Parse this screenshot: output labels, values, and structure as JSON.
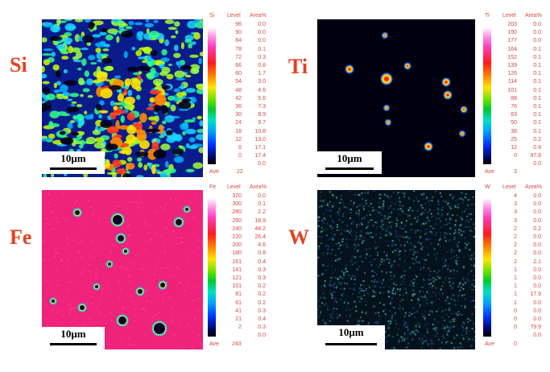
{
  "panels": [
    {
      "element": "Si",
      "scalebar": "10μm",
      "colorbar_tag": "Si",
      "headers": {
        "level": "Level",
        "area": "Area%"
      },
      "levels": [
        "96",
        "90",
        "84",
        "78",
        "72",
        "66",
        "60",
        "54",
        "48",
        "42",
        "36",
        "30",
        "24",
        "18",
        "12",
        "6",
        "0"
      ],
      "areas": [
        "0.0",
        "0.0",
        "0.0",
        "0.1",
        "0.3",
        "0.8",
        "1.7",
        "3.0",
        "4.6",
        "5.6",
        "7.3",
        "8.9",
        "9.7",
        "10.8",
        "13.0",
        "17.1",
        "17.4",
        "0.0"
      ],
      "ave_label": "Ave",
      "ave_value": "22"
    },
    {
      "element": "Ti",
      "scalebar": "10μm",
      "colorbar_tag": "Ti",
      "headers": {
        "level": "Level",
        "area": "Area%"
      },
      "levels": [
        "203",
        "190",
        "177",
        "164",
        "152",
        "139",
        "126",
        "114",
        "101",
        "88",
        "76",
        "63",
        "50",
        "38",
        "25",
        "12",
        "0"
      ],
      "areas": [
        "0.0",
        "0.0",
        "0.0",
        "0.1",
        "0.1",
        "0.1",
        "0.1",
        "0.1",
        "0.1",
        "0.1",
        "0.1",
        "0.1",
        "0.1",
        "0.1",
        "0.2",
        "0.8",
        "97.8",
        "0.0"
      ],
      "ave_label": "Ave",
      "ave_value": "3"
    },
    {
      "element": "Fe",
      "scalebar": "10μm",
      "colorbar_tag": "Fe",
      "headers": {
        "level": "Level",
        "area": "Area%"
      },
      "levels": [
        "320",
        "300",
        "280",
        "260",
        "240",
        "220",
        "200",
        "180",
        "161",
        "141",
        "121",
        "101",
        "81",
        "61",
        "41",
        "21",
        "2"
      ],
      "areas": [
        "0.0",
        "0.1",
        "2.2",
        "18.9",
        "44.2",
        "26.4",
        "4.6",
        "0.8",
        "0.4",
        "0.3",
        "0.3",
        "0.2",
        "0.2",
        "0.2",
        "0.3",
        "0.4",
        "0.3",
        "0.0"
      ],
      "ave_label": "Ave",
      "ave_value": "243"
    },
    {
      "element": "W",
      "scalebar": "10μm",
      "colorbar_tag": "W",
      "headers": {
        "level": "Level",
        "area": "Area%"
      },
      "levels": [
        "4",
        "3",
        "3",
        "3",
        "2",
        "2",
        "2",
        "2",
        "2",
        "1",
        "1",
        "1",
        "1",
        "1",
        "0",
        "0",
        "0"
      ],
      "areas": [
        "0.0",
        "0.0",
        "0.0",
        "0.0",
        "0.2",
        "0.0",
        "0.0",
        "0.0",
        "2.1",
        "0.0",
        "0.0",
        "0.0",
        "17.9",
        "0.0",
        "0.0",
        "0.0",
        "79.9",
        "0.0"
      ],
      "ave_label": "Ave",
      "ave_value": "0"
    }
  ],
  "colors": {
    "label": "#e4421f",
    "table_text": "#d24a3c",
    "si_bg": "#0a1c8c",
    "ti_bg": "#000010",
    "fe_bg": "#f0237a",
    "w_bg": "#05121c"
  }
}
